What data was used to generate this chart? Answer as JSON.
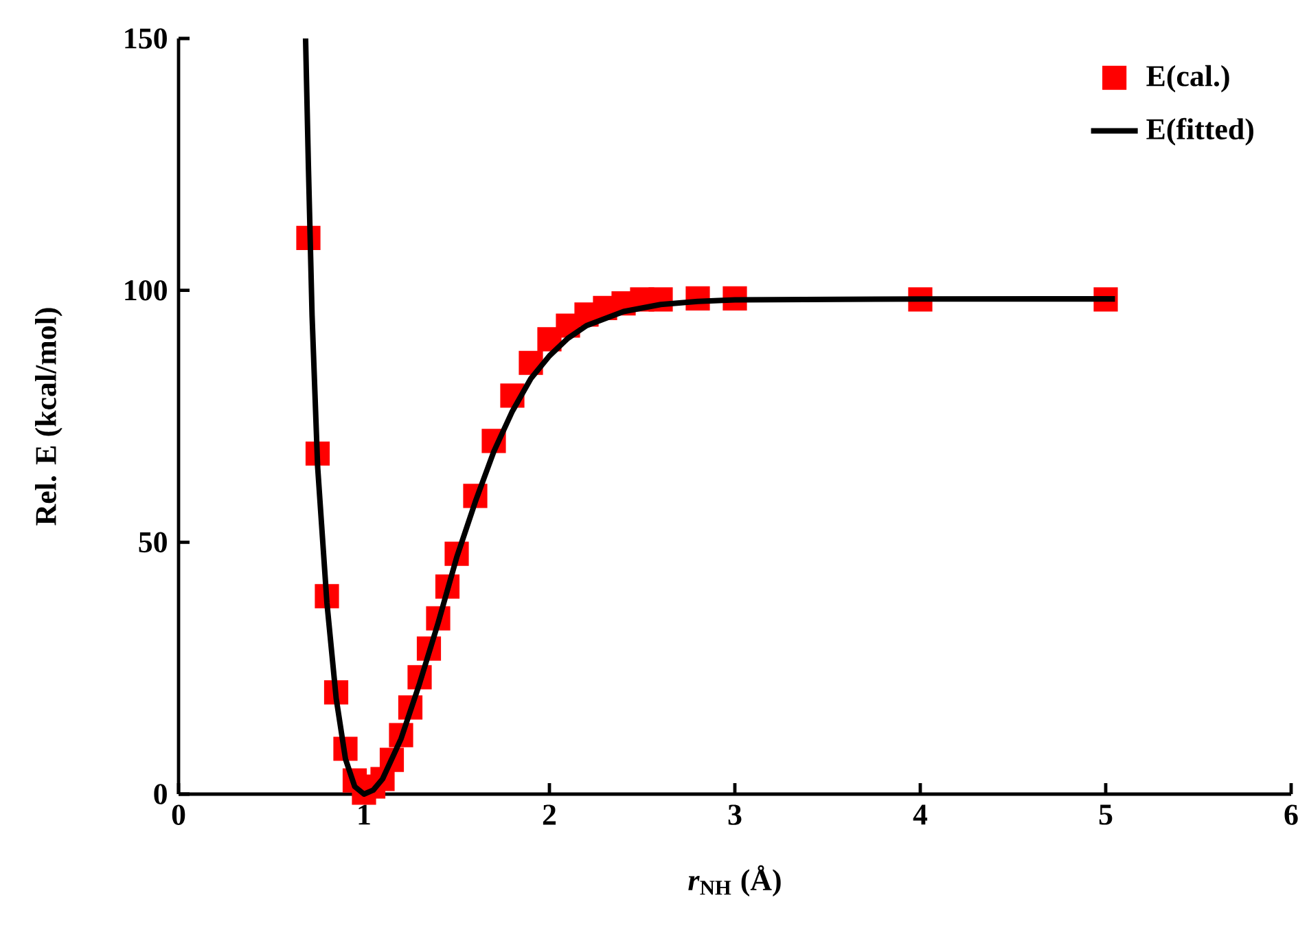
{
  "chart_data": {
    "type": "scatter",
    "xlabel": "*r*$_{NH}$ (Å)",
    "ylabel": "Rel. E (kcal/mol)",
    "xlim": [
      0,
      6
    ],
    "ylim": [
      0,
      150
    ],
    "xticks": [
      0,
      1,
      2,
      3,
      4,
      5,
      6
    ],
    "yticks": [
      0,
      50,
      100,
      150
    ],
    "grid": false,
    "legend": "top right",
    "series": [
      {
        "name": "E(cal.)",
        "marker": "square",
        "color": "#ff0000",
        "x": [
          0.7,
          0.75,
          0.8,
          0.85,
          0.9,
          0.95,
          1.0,
          1.05,
          1.1,
          1.15,
          1.2,
          1.25,
          1.3,
          1.35,
          1.4,
          1.45,
          1.5,
          1.6,
          1.7,
          1.8,
          1.9,
          2.0,
          2.1,
          2.2,
          2.3,
          2.4,
          2.5,
          2.6,
          2.8,
          3.0,
          4.0,
          5.0
        ],
        "values": [
          110.4,
          67.6,
          39.3,
          20.2,
          9.0,
          2.7,
          0.3,
          1.5,
          3.0,
          6.8,
          11.7,
          17.2,
          23.2,
          28.9,
          34.9,
          41.2,
          47.7,
          59.2,
          70.1,
          79.1,
          85.6,
          90.3,
          93.0,
          95.2,
          96.5,
          97.4,
          98.2,
          98.2,
          98.4,
          98.4,
          98.2,
          98.2
        ]
      },
      {
        "name": "E(fitted)",
        "type": "line",
        "marker": "none",
        "line_style": "solid",
        "color": "#000000",
        "x": [
          0.685,
          0.7,
          0.72,
          0.75,
          0.8,
          0.85,
          0.9,
          0.95,
          1.0,
          1.05,
          1.1,
          1.2,
          1.3,
          1.4,
          1.5,
          1.6,
          1.7,
          1.8,
          1.9,
          2.0,
          2.1,
          2.2,
          2.4,
          2.6,
          2.8,
          3.0,
          4.0,
          5.05
        ],
        "values": [
          150,
          125,
          95,
          65,
          38,
          19,
          7,
          1.5,
          0,
          0.8,
          3,
          11,
          22,
          34,
          47,
          58,
          68,
          76,
          82.5,
          87,
          90.5,
          93,
          95.8,
          97.2,
          97.8,
          98.1,
          98.3,
          98.3
        ]
      }
    ]
  }
}
